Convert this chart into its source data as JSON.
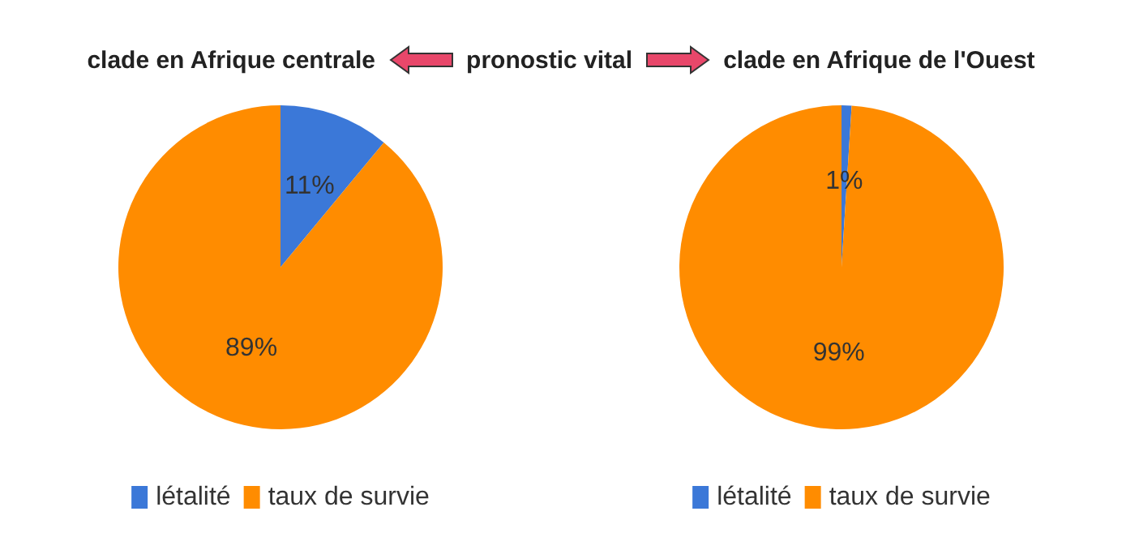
{
  "chart_data": [
    {
      "type": "pie",
      "title": "clade en Afrique centrale",
      "annotations": [
        "pronostic vital"
      ],
      "categories": [
        "létalité",
        "taux de survie"
      ],
      "values": [
        11,
        89
      ],
      "colors": [
        "#3b78d8",
        "#ff8c00"
      ],
      "value_labels": [
        "11%",
        "89%"
      ],
      "legend": "bottom"
    },
    {
      "type": "pie",
      "title": "clade en Afrique de l'Ouest",
      "categories": [
        "létalité",
        "taux de survie"
      ],
      "values": [
        1,
        99
      ],
      "colors": [
        "#3b78d8",
        "#ff8c00"
      ],
      "value_labels": [
        "1%",
        "99%"
      ],
      "legend": "bottom"
    }
  ]
}
